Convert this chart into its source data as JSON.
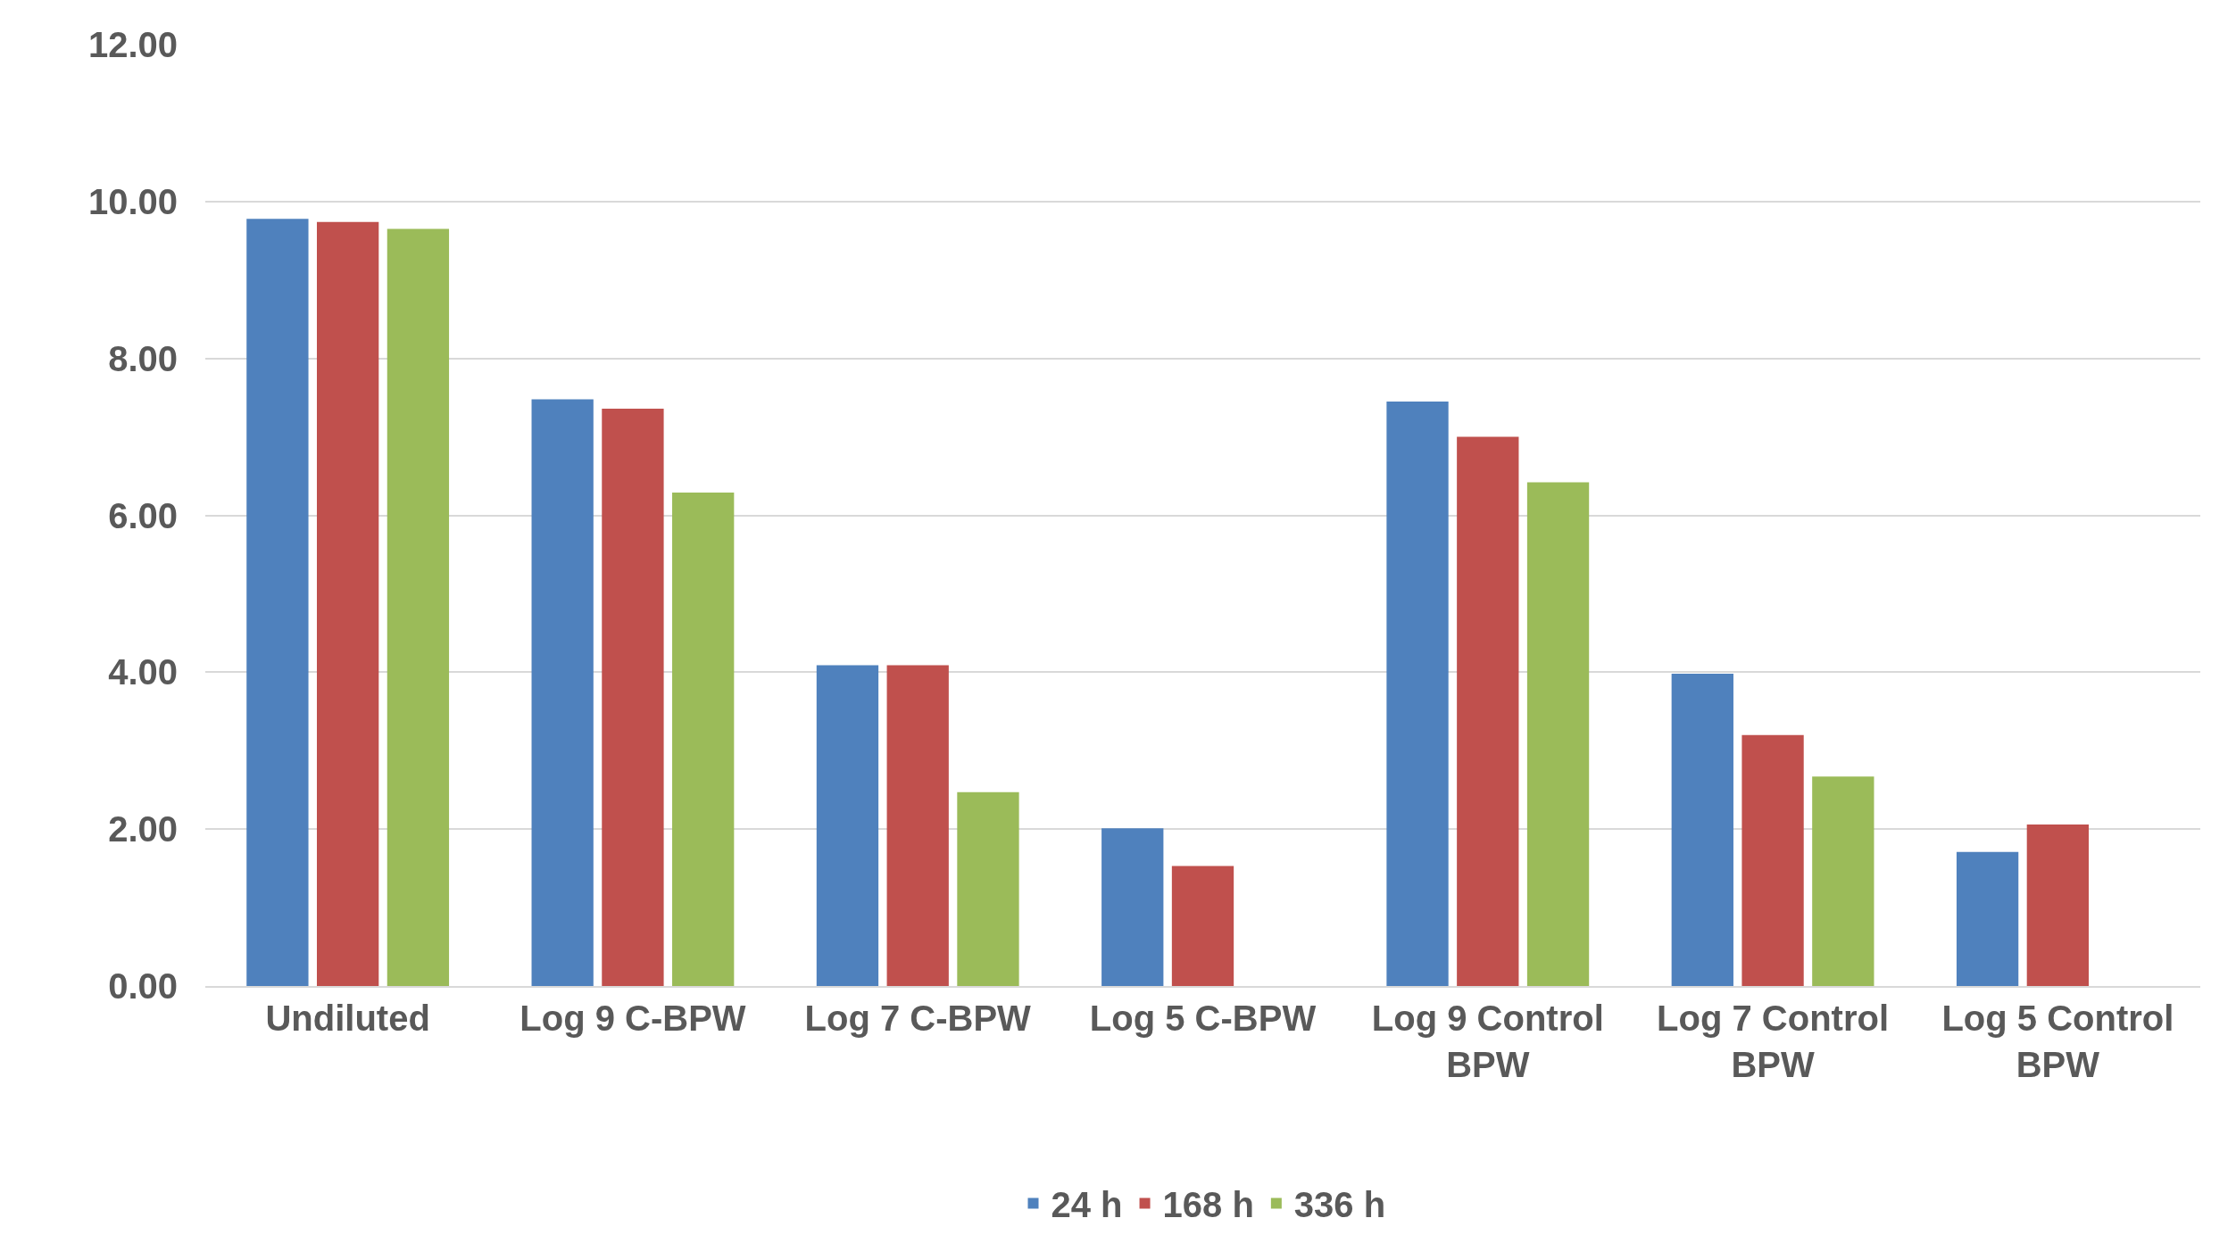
{
  "chart_data": {
    "type": "bar",
    "categories": [
      "Undiluted",
      "Log 9 C-BPW",
      "Log 7 C-BPW",
      "Log 5 C-BPW",
      "Log 9 Control BPW",
      "Log 7 Control BPW",
      "Log 5 Control BPW"
    ],
    "series": [
      {
        "name": "24 h",
        "color": "#4f81bd",
        "values": [
          9.78,
          7.48,
          4.09,
          2.01,
          7.45,
          3.98,
          1.71
        ]
      },
      {
        "name": "168 h",
        "color": "#c0504d",
        "values": [
          9.74,
          7.36,
          4.09,
          1.53,
          7.0,
          3.2,
          2.06
        ]
      },
      {
        "name": "336 h",
        "color": "#9bbb59",
        "values": [
          9.65,
          6.29,
          2.47,
          null,
          6.42,
          2.67,
          null
        ]
      }
    ],
    "ylim": [
      0,
      12
    ],
    "yticks": [
      {
        "value": 0,
        "label": "0.00"
      },
      {
        "value": 2,
        "label": "2.00"
      },
      {
        "value": 4,
        "label": "4.00"
      },
      {
        "value": 6,
        "label": "6.00"
      },
      {
        "value": 8,
        "label": "8.00"
      },
      {
        "value": 10,
        "label": "10.00"
      },
      {
        "value": 12,
        "label": "12.00"
      }
    ],
    "grid": "y",
    "legend": "bottom"
  }
}
